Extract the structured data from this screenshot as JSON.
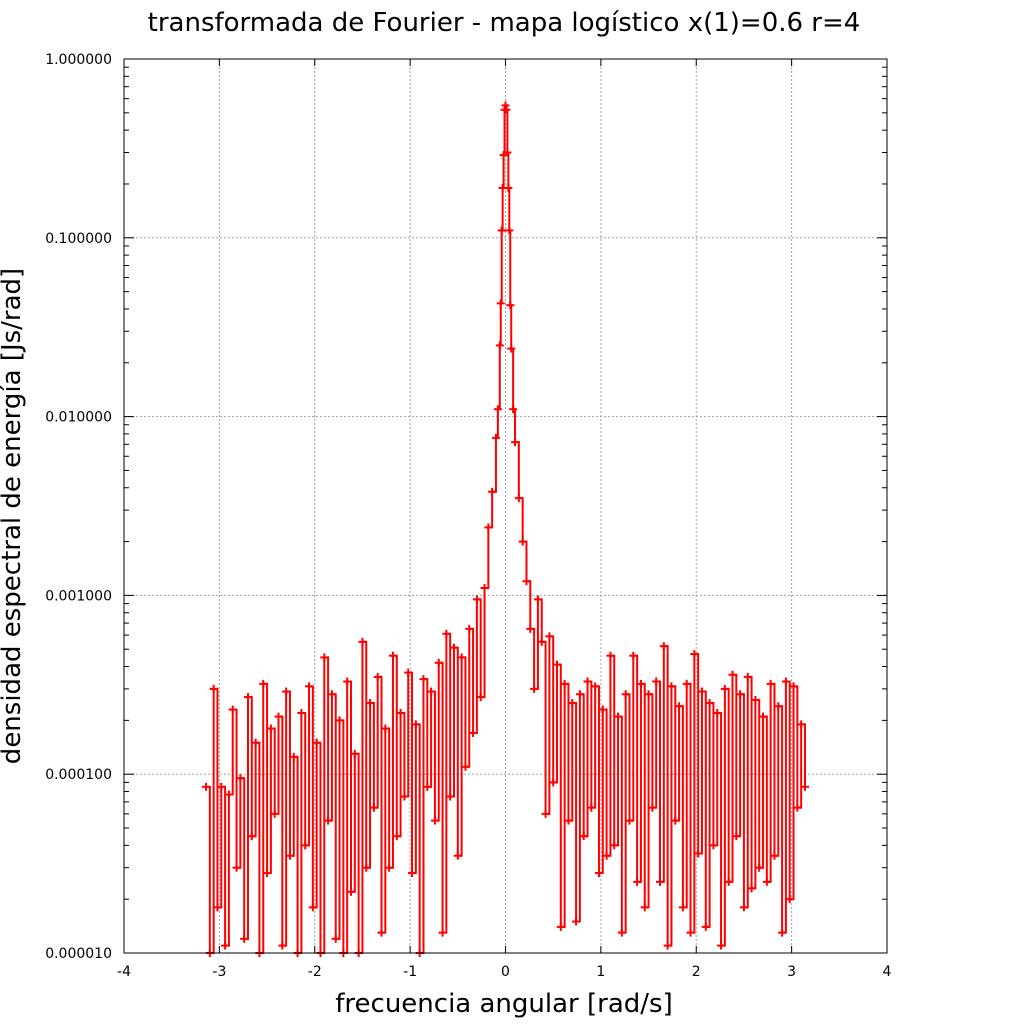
{
  "chart_data": {
    "type": "line",
    "title": "transformada de Fourier - mapa logístico x(1)=0.6   r=4",
    "xlabel": "frecuencia angular [rad/s]",
    "ylabel": "densidad espectral de energía [Js/rad]",
    "xlim": [
      -4,
      4
    ],
    "ylim": [
      1e-05,
      1.0
    ],
    "y_scale": "log",
    "grid": true,
    "x_ticks": [
      "-4",
      "-3",
      "-2",
      "-1",
      "0",
      "1",
      "2",
      "3",
      "4"
    ],
    "y_ticks": [
      "0.000010",
      "0.000100",
      "0.001000",
      "0.010000",
      "0.100000",
      "1.000000"
    ],
    "series": [
      {
        "color": "#ff0000",
        "marker": "plus",
        "x": [
          -3.14,
          -3.1,
          -3.06,
          -3.02,
          -2.98,
          -2.94,
          -2.9,
          -2.86,
          -2.82,
          -2.78,
          -2.74,
          -2.7,
          -2.66,
          -2.62,
          -2.58,
          -2.54,
          -2.5,
          -2.46,
          -2.42,
          -2.38,
          -2.34,
          -2.3,
          -2.26,
          -2.22,
          -2.18,
          -2.14,
          -2.1,
          -2.06,
          -2.02,
          -1.98,
          -1.94,
          -1.9,
          -1.86,
          -1.82,
          -1.78,
          -1.74,
          -1.7,
          -1.66,
          -1.62,
          -1.58,
          -1.54,
          -1.5,
          -1.46,
          -1.42,
          -1.38,
          -1.34,
          -1.3,
          -1.26,
          -1.22,
          -1.18,
          -1.14,
          -1.1,
          -1.06,
          -1.02,
          -0.98,
          -0.94,
          -0.9,
          -0.86,
          -0.82,
          -0.78,
          -0.74,
          -0.7,
          -0.66,
          -0.62,
          -0.58,
          -0.54,
          -0.5,
          -0.46,
          -0.42,
          -0.38,
          -0.34,
          -0.3,
          -0.26,
          -0.22,
          -0.18,
          -0.14,
          -0.1,
          -0.08,
          -0.06,
          -0.05,
          -0.04,
          -0.03,
          -0.02,
          -0.01,
          0.0,
          0.01,
          0.02,
          0.03,
          0.04,
          0.05,
          0.06,
          0.08,
          0.1,
          0.14,
          0.18,
          0.22,
          0.26,
          0.3,
          0.34,
          0.38,
          0.42,
          0.46,
          0.5,
          0.54,
          0.58,
          0.62,
          0.66,
          0.7,
          0.74,
          0.78,
          0.82,
          0.86,
          0.9,
          0.94,
          0.98,
          1.02,
          1.06,
          1.1,
          1.14,
          1.18,
          1.22,
          1.26,
          1.3,
          1.34,
          1.38,
          1.42,
          1.46,
          1.5,
          1.54,
          1.58,
          1.62,
          1.66,
          1.7,
          1.74,
          1.78,
          1.82,
          1.86,
          1.9,
          1.94,
          1.98,
          2.02,
          2.06,
          2.1,
          2.14,
          2.18,
          2.22,
          2.26,
          2.3,
          2.34,
          2.38,
          2.42,
          2.46,
          2.5,
          2.54,
          2.58,
          2.62,
          2.66,
          2.7,
          2.74,
          2.78,
          2.82,
          2.86,
          2.9,
          2.94,
          2.98,
          3.02,
          3.06,
          3.1,
          3.14
        ],
        "y": [
          8.5e-05,
          1e-05,
          0.0003,
          1.8e-05,
          8.5e-05,
          1.1e-05,
          7.7e-05,
          0.00023,
          3e-05,
          9.5e-05,
          1.2e-05,
          0.00027,
          4.5e-05,
          0.00015,
          1e-05,
          0.00032,
          2.8e-05,
          0.00018,
          6e-05,
          0.00021,
          1.1e-05,
          0.00029,
          3.5e-05,
          0.000125,
          1e-05,
          0.00022,
          4e-05,
          0.00031,
          1.8e-05,
          0.00015,
          1e-05,
          0.00045,
          5.5e-05,
          0.00028,
          1.2e-05,
          0.0002,
          1e-05,
          0.00033,
          2.2e-05,
          0.00013,
          1e-05,
          0.00055,
          3e-05,
          0.00025,
          6.5e-05,
          0.00035,
          1.3e-05,
          0.00018,
          3e-05,
          0.00046,
          4.5e-05,
          0.00022,
          7.5e-05,
          0.00037,
          2.8e-05,
          0.00019,
          1e-05,
          0.00034,
          8.5e-05,
          0.00029,
          5.5e-05,
          0.00042,
          1.3e-05,
          0.00061,
          7.5e-05,
          0.00051,
          3.5e-05,
          0.00045,
          0.00011,
          0.00065,
          0.00017,
          0.00095,
          0.00027,
          0.0011,
          0.0024,
          0.0038,
          0.0076,
          0.011,
          0.025,
          0.043,
          0.11,
          0.19,
          0.29,
          0.52,
          0.55,
          0.52,
          0.3,
          0.19,
          0.11,
          0.042,
          0.024,
          0.011,
          0.0072,
          0.0035,
          0.002,
          0.0012,
          0.00065,
          0.0003,
          0.00095,
          0.00055,
          6e-05,
          0.00059,
          9e-05,
          0.00041,
          1.4e-05,
          0.00032,
          5.5e-05,
          0.00025,
          1.5e-05,
          0.00028,
          4.5e-05,
          0.00033,
          6.5e-05,
          0.00031,
          2.8e-05,
          0.00023,
          3.5e-05,
          0.00046,
          4e-05,
          0.00021,
          1.3e-05,
          0.00028,
          5.5e-05,
          0.00046,
          2.5e-05,
          0.00032,
          1.8e-05,
          0.00028,
          6.5e-05,
          0.00033,
          2.5e-05,
          0.00052,
          1.1e-05,
          0.00031,
          5.5e-05,
          0.00024,
          1.8e-05,
          0.00032,
          1.3e-05,
          0.00047,
          3.6e-05,
          0.00029,
          1.4e-05,
          0.00025,
          4e-05,
          0.00022,
          1.1e-05,
          0.0003,
          2.5e-05,
          0.00036,
          4.5e-05,
          0.00028,
          1.8e-05,
          0.00035,
          2.3e-05,
          0.00026,
          3e-05,
          0.00021,
          2.5e-05,
          0.00032,
          3.5e-05,
          0.00024,
          1.3e-05,
          0.00033,
          2e-05,
          0.00031,
          6.5e-05,
          0.00019,
          8.5e-05
        ]
      }
    ]
  }
}
